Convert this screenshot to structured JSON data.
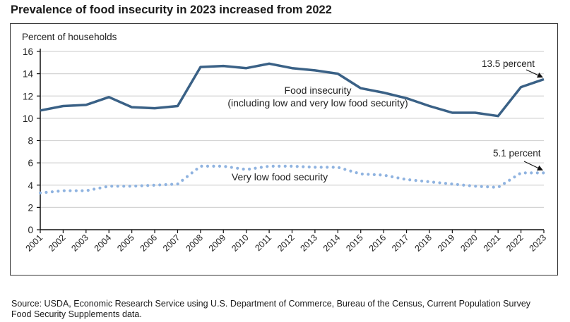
{
  "title": "Prevalence of food insecurity in 2023 increased from 2022",
  "source": {
    "line1": "Source: USDA, Economic Research Service using U.S. Department of Commerce, Bureau of the Census, Current Population Survey",
    "line2": "Food Security Supplements data."
  },
  "chart_data": {
    "type": "line",
    "title": "Prevalence of food insecurity in 2023 increased from 2022",
    "ylabel": "Percent of households",
    "xlabel": "",
    "ylim": [
      0,
      16
    ],
    "yticks": [
      0,
      2,
      4,
      6,
      8,
      10,
      12,
      14,
      16
    ],
    "grid": true,
    "x": [
      "2001",
      "2002",
      "2003",
      "2004",
      "2005",
      "2006",
      "2007",
      "2008",
      "2009",
      "2010",
      "2011",
      "2012",
      "2013",
      "2014",
      "2015",
      "2016",
      "2017",
      "2018",
      "2019",
      "2020",
      "2021",
      "2022",
      "2023"
    ],
    "series": [
      {
        "name": "Food insecurity (including low and very low food security)",
        "label_lines": [
          "Food insecurity",
          "(including low and very low food security)"
        ],
        "style": "solid",
        "color": "#3a6186",
        "values": [
          10.7,
          11.1,
          11.2,
          11.9,
          11.0,
          10.9,
          11.1,
          14.6,
          14.7,
          14.5,
          14.9,
          14.5,
          14.3,
          14.0,
          12.7,
          12.3,
          11.8,
          11.1,
          10.5,
          10.5,
          10.2,
          12.8,
          13.5
        ]
      },
      {
        "name": "Very low food security",
        "label_lines": [
          "Very low food security"
        ],
        "style": "dotted",
        "color": "#8fb3e0",
        "values": [
          3.3,
          3.5,
          3.5,
          3.9,
          3.9,
          4.0,
          4.1,
          5.7,
          5.7,
          5.4,
          5.7,
          5.7,
          5.6,
          5.6,
          5.0,
          4.9,
          4.5,
          4.3,
          4.1,
          3.9,
          3.8,
          5.1,
          5.1
        ]
      }
    ],
    "annotations": [
      {
        "text": "13.5 percent",
        "series": 0,
        "x": "2023",
        "value": 13.5
      },
      {
        "text": "5.1 percent",
        "series": 1,
        "x": "2023",
        "value": 5.1
      }
    ]
  }
}
